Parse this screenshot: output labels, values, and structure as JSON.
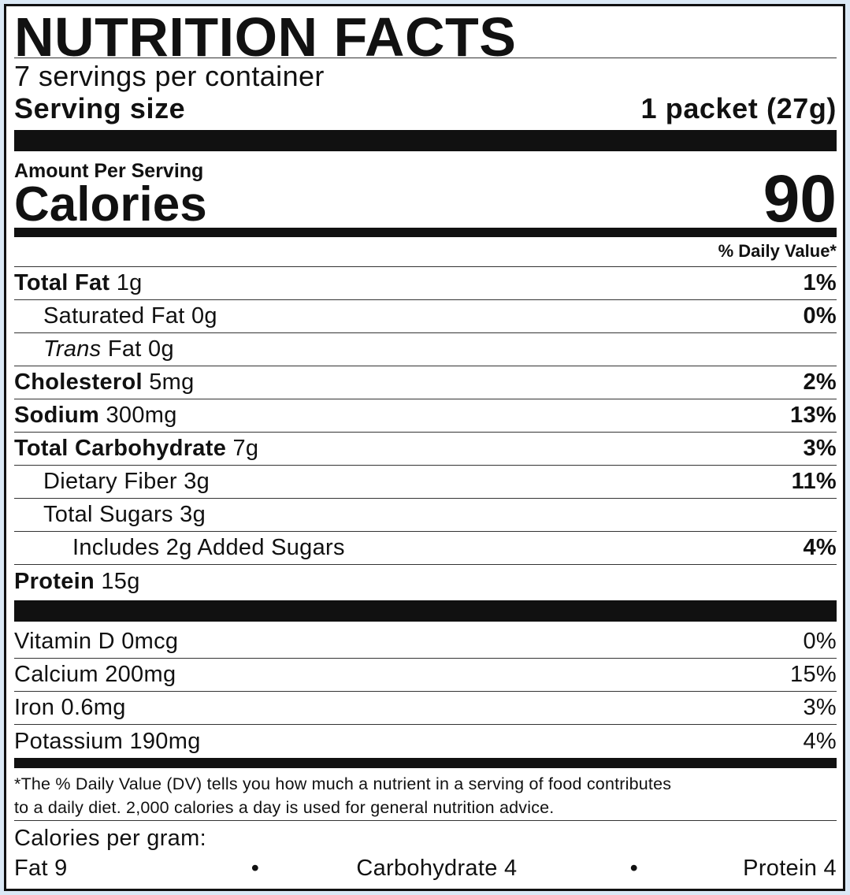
{
  "title": "NUTRITION FACTS",
  "servings_per_container": "7 servings per container",
  "serving_size": {
    "label": "Serving size",
    "value": "1 packet (27g)"
  },
  "amount_per_serving": "Amount Per Serving",
  "calories": {
    "label": "Calories",
    "value": "90"
  },
  "daily_value_header": "% Daily Value*",
  "nutrients": [
    {
      "name": "Total Fat",
      "amount": "1g",
      "dv": "1%"
    },
    {
      "name": "Saturated Fat",
      "amount": "0g",
      "dv": "0%"
    },
    {
      "name": "Trans",
      "name_suffix": "Fat",
      "amount": "0g",
      "dv": ""
    },
    {
      "name": "Cholesterol",
      "amount": "5mg",
      "dv": "2%"
    },
    {
      "name": "Sodium",
      "amount": "300mg",
      "dv": "13%"
    },
    {
      "name": "Total Carbohydrate",
      "amount": "7g",
      "dv": "3%"
    },
    {
      "name": "Dietary Fiber",
      "amount": "3g",
      "dv": "11%"
    },
    {
      "name": "Total Sugars",
      "amount": "3g",
      "dv": ""
    },
    {
      "name": "Includes 2g Added Sugars",
      "amount": "",
      "dv": "4%"
    },
    {
      "name": "Protein",
      "amount": "15g",
      "dv": ""
    }
  ],
  "vitamins": [
    {
      "name": "Vitamin D",
      "amount": "0mcg",
      "dv": "0%"
    },
    {
      "name": "Calcium",
      "amount": "200mg",
      "dv": "15%"
    },
    {
      "name": "Iron",
      "amount": "0.6mg",
      "dv": "3%"
    },
    {
      "name": "Potassium",
      "amount": "190mg",
      "dv": "4%"
    }
  ],
  "footnote_line1": "*The % Daily Value (DV) tells you how much a nutrient in a serving of food contributes",
  "footnote_line2": "to a daily diet. 2,000 calories a day is used for general nutrition advice.",
  "calories_per_gram": {
    "label": "Calories per gram:",
    "fat": "Fat 9",
    "carbohydrate": "Carbohydrate 4",
    "protein": "Protein 4",
    "separator": "•"
  }
}
